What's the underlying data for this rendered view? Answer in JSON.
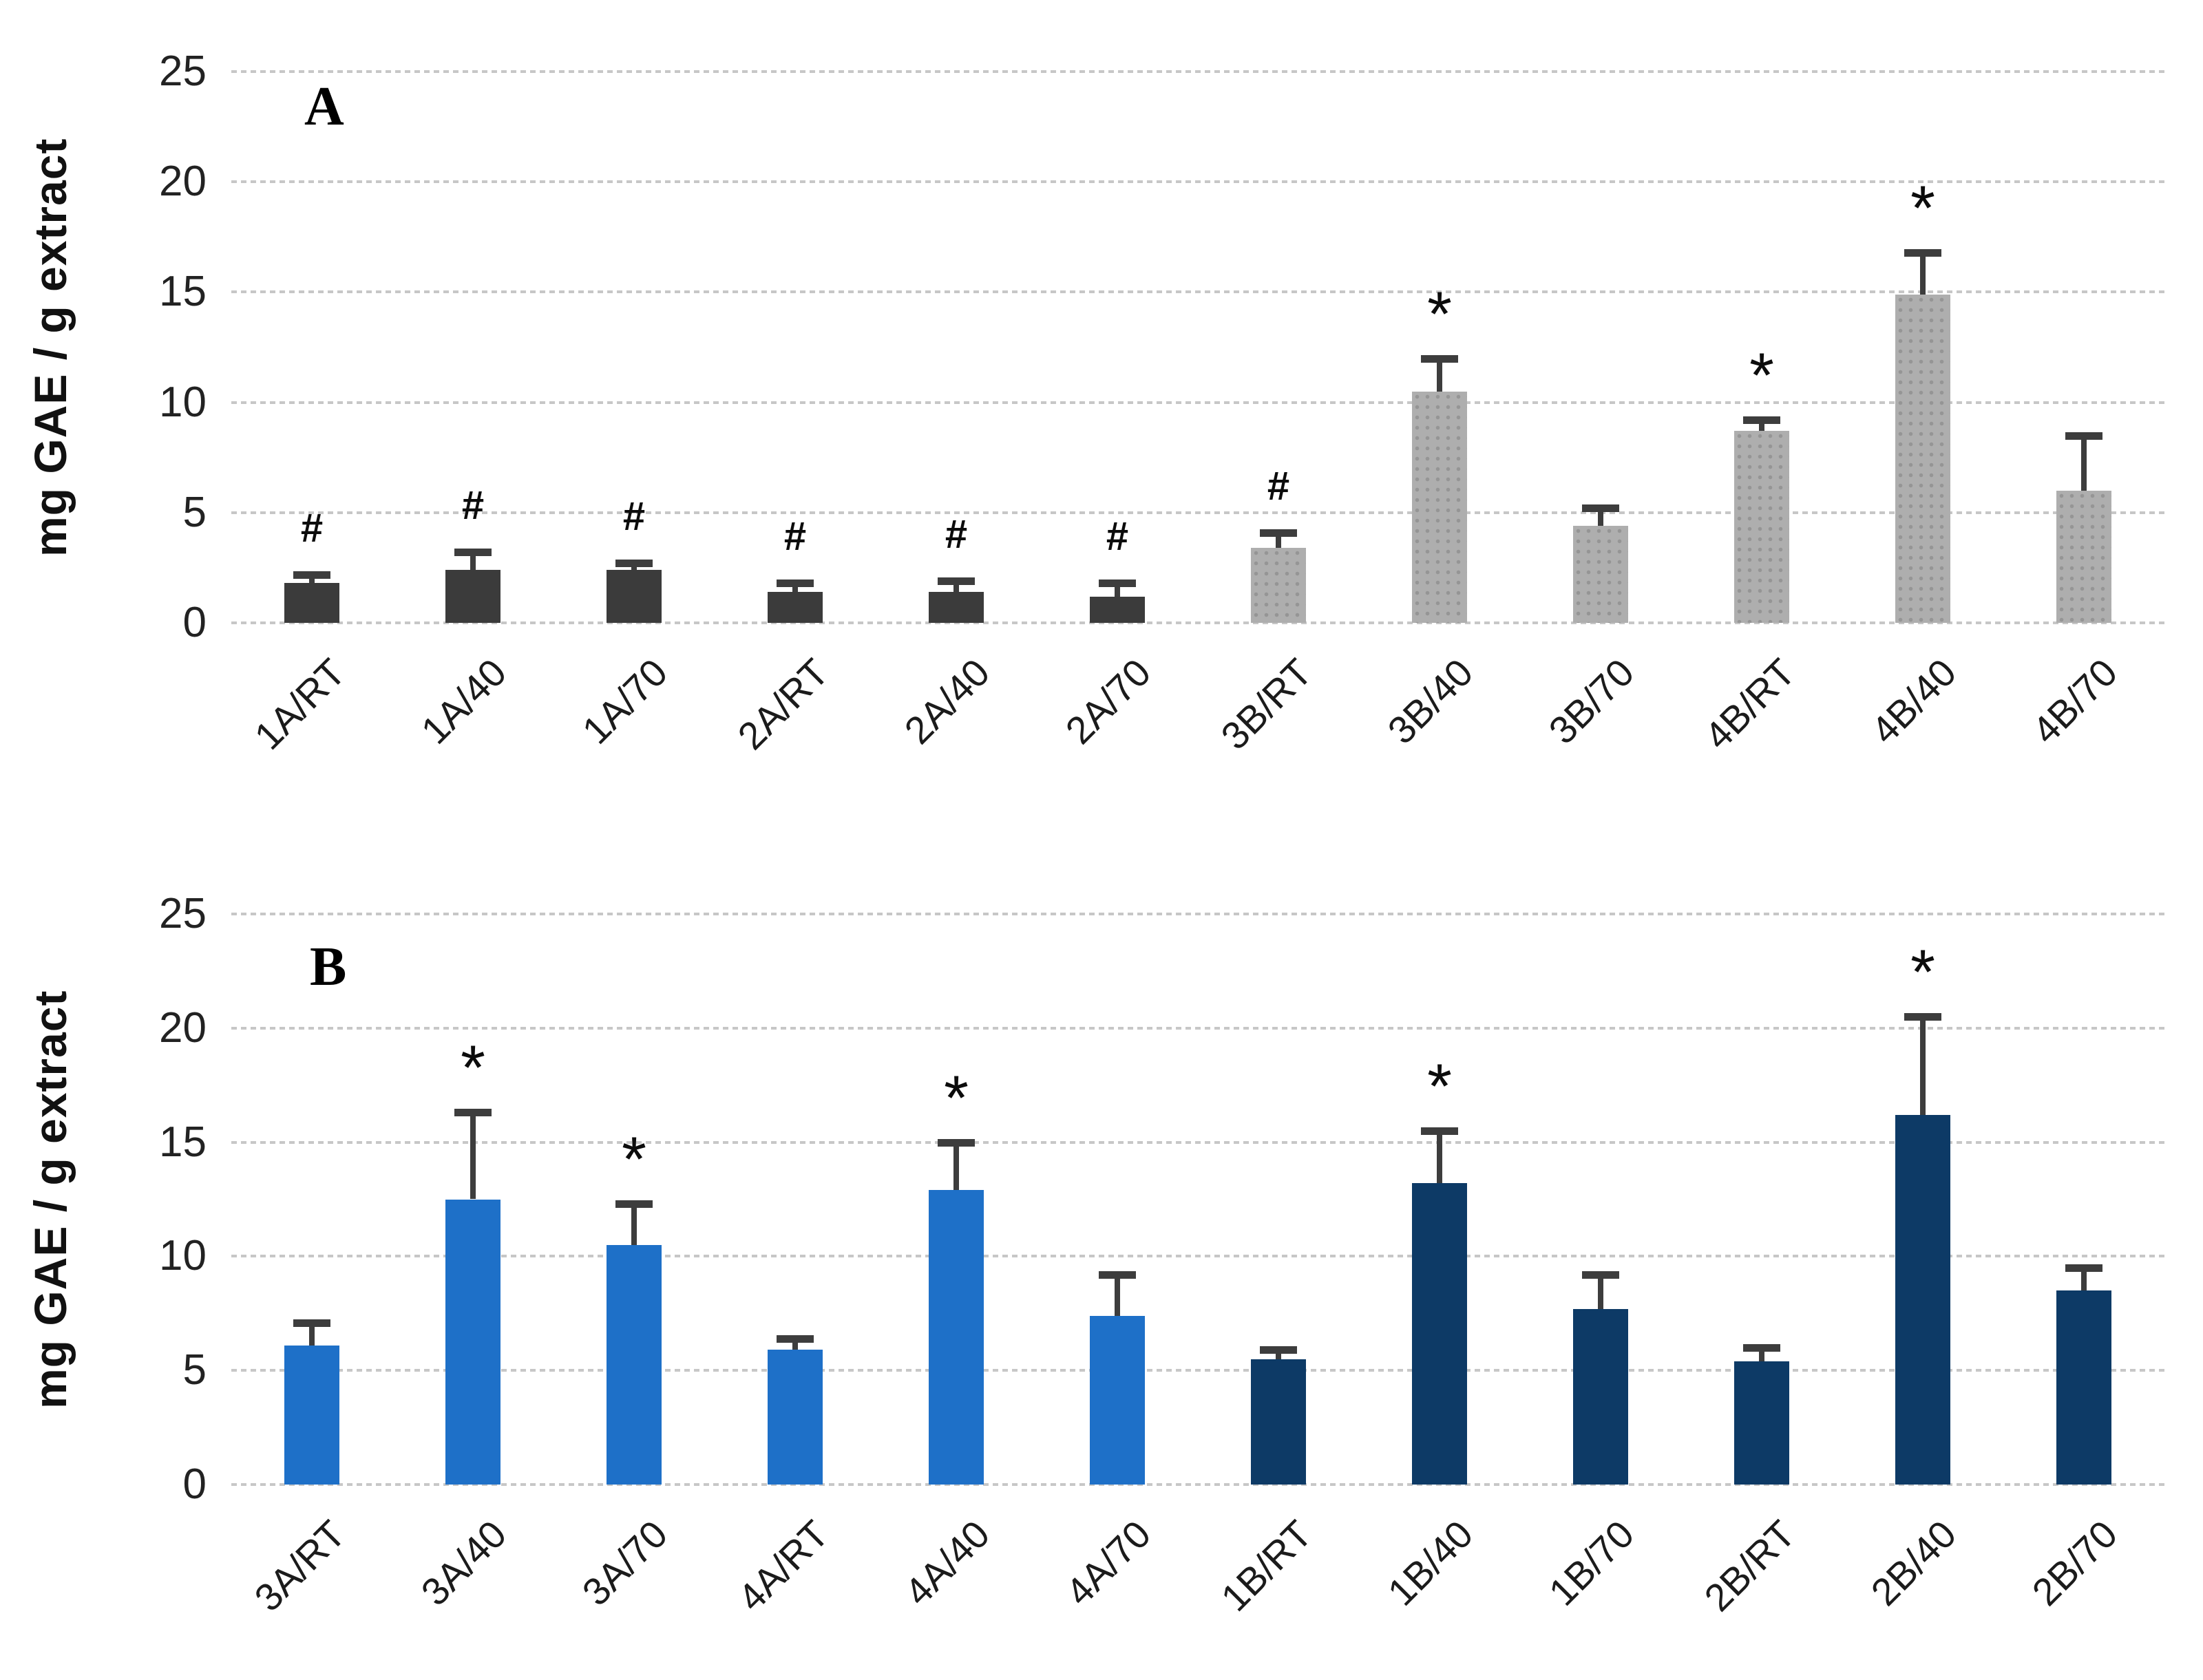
{
  "colors": {
    "dark_gray": "#3b3b3b",
    "light_gray_dotted": "#aeaeae",
    "light_gray_dot": "#959595",
    "blue": "#1e70c8",
    "dark_navy": "#0d3a66",
    "error_bar": "#3d3d3d",
    "gridline": "#c7c7c7",
    "annotation": "#0c0c0c"
  },
  "chart_data": [
    {
      "type": "bar",
      "panel_label": "A",
      "title": "",
      "xlabel": "",
      "ylabel": "mg GAE / g extract",
      "ylim": [
        0,
        25
      ],
      "ytick_step": 5,
      "ytick_labels": [
        "0",
        "5",
        "10",
        "15",
        "20",
        "25"
      ],
      "grid": true,
      "legend": "none",
      "categories": [
        "1A/RT",
        "1A/40",
        "1A/70",
        "2A/RT",
        "2A/40",
        "2A/70",
        "3B/RT",
        "3B/40",
        "3B/70",
        "4B/RT",
        "4B/40",
        "4B/70"
      ],
      "values": [
        1.8,
        2.4,
        2.4,
        1.4,
        1.4,
        1.2,
        3.4,
        10.5,
        4.4,
        8.7,
        14.9,
        6.0
      ],
      "errors_upper": [
        0.4,
        0.8,
        0.3,
        0.4,
        0.5,
        0.6,
        0.7,
        1.5,
        0.8,
        0.5,
        1.9,
        2.5
      ],
      "annotations": [
        "#",
        "#",
        "#",
        "#",
        "#",
        "#",
        "#",
        "*",
        "",
        "*",
        "*",
        ""
      ],
      "styles": [
        "dark_gray",
        "dark_gray",
        "dark_gray",
        "dark_gray",
        "dark_gray",
        "dark_gray",
        "light_gray_dotted",
        "light_gray_dotted",
        "light_gray_dotted",
        "light_gray_dotted",
        "light_gray_dotted",
        "light_gray_dotted"
      ]
    },
    {
      "type": "bar",
      "panel_label": "B",
      "title": "",
      "xlabel": "",
      "ylabel": "mg GAE / g extract",
      "ylim": [
        0,
        25
      ],
      "ytick_step": 5,
      "ytick_labels": [
        "0",
        "5",
        "10",
        "15",
        "20",
        "25"
      ],
      "grid": true,
      "legend": "none",
      "categories": [
        "3A/RT",
        "3A/40",
        "3A/70",
        "4A/RT",
        "4A/40",
        "4A/70",
        "1B/RT",
        "1B/40",
        "1B/70",
        "2B/RT",
        "2B/40",
        "2B/70"
      ],
      "values": [
        6.1,
        12.5,
        10.5,
        5.9,
        12.9,
        7.4,
        5.5,
        13.2,
        7.7,
        5.4,
        16.2,
        8.5
      ],
      "errors_upper": [
        1.0,
        3.8,
        1.8,
        0.5,
        2.1,
        1.8,
        0.4,
        2.3,
        1.5,
        0.6,
        4.3,
        1.0
      ],
      "annotations": [
        "",
        "*",
        "*",
        "",
        "*",
        "",
        "",
        "*",
        "",
        "",
        "*",
        ""
      ],
      "styles": [
        "blue",
        "blue",
        "blue",
        "blue",
        "blue",
        "blue",
        "dark_navy",
        "dark_navy",
        "dark_navy",
        "dark_navy",
        "dark_navy",
        "dark_navy"
      ]
    }
  ]
}
